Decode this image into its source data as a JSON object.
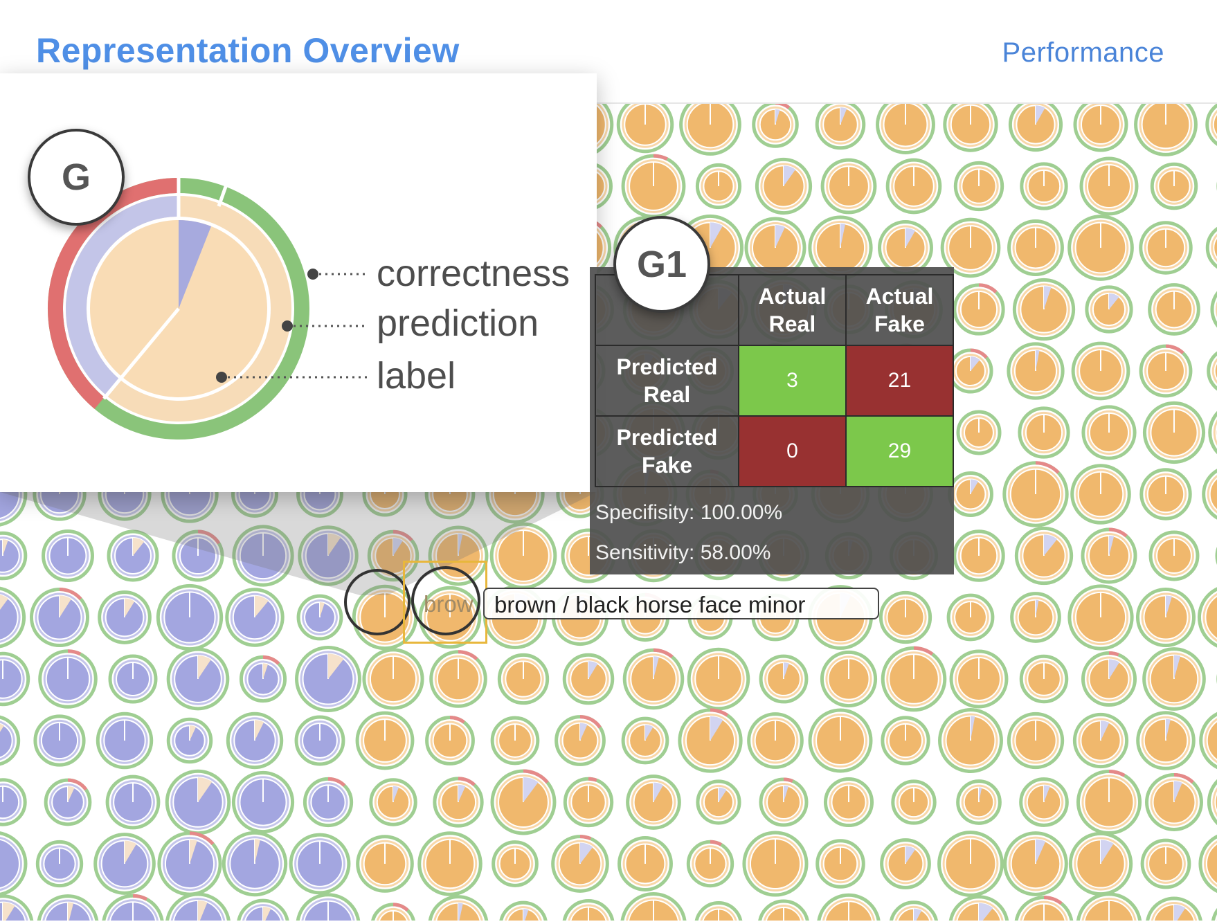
{
  "header": {
    "title": "Representation Overview",
    "performance_link": "Performance"
  },
  "colors": {
    "real": "#8f93d9",
    "fake": "#eda94d",
    "correct": "#8ac47a",
    "incorrect": "#e07070",
    "title_blue": "#4f8fe6",
    "tp_green": "#7cc84b",
    "fp_red": "#983131"
  },
  "zoom_panel": {
    "badge": "G",
    "legend": {
      "correctness": "correctness",
      "prediction": "prediction",
      "label": "label"
    }
  },
  "tooltip": {
    "badge": "G1",
    "col_headers": [
      "Actual\nReal",
      "Actual\nFake"
    ],
    "row_headers": [
      "Predicted\nReal",
      "Predicted\nFake"
    ],
    "matrix": [
      [
        3,
        21
      ],
      [
        0,
        29
      ]
    ],
    "specificity": "Specifisity: 100.00%",
    "sensitivity": "Sensitivity: 58.00%"
  },
  "hover_label": {
    "text": "brown / black horse face minor",
    "ghost": "brow"
  }
}
